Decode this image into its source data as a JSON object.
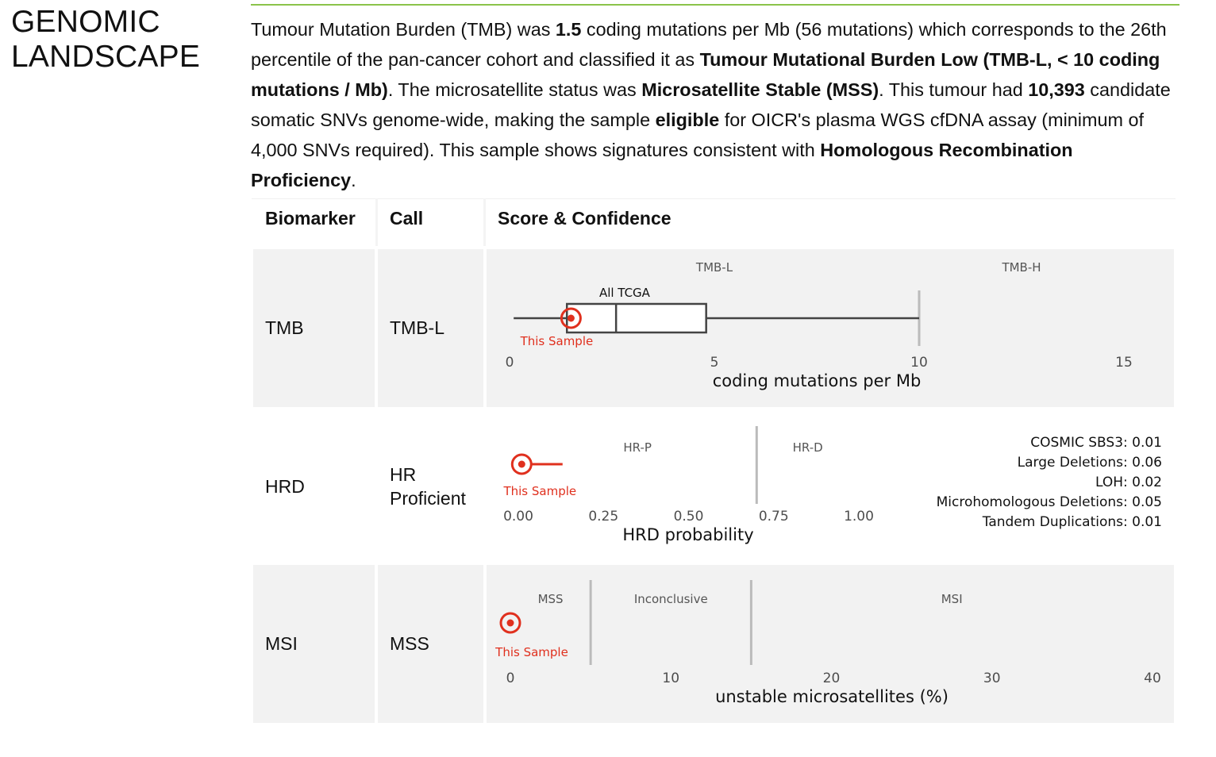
{
  "section": {
    "title_line1": "GENOMIC",
    "title_line2": "LANDSCAPE"
  },
  "summary": {
    "s1": "Tumour Mutation Burden (TMB) was ",
    "b1": "1.5",
    "s2": " coding mutations per Mb (56 mutations) which corresponds to the 26th percentile of the pan-cancer cohort and classified it as ",
    "b2": "Tumour Mutational Burden Low (TMB-L, < 10 coding mutations / Mb)",
    "s3": ". The microsatellite status was ",
    "b3": "Microsatellite Stable (MSS)",
    "s4": ". This tumour had ",
    "b4": "10,393",
    "s5": " candidate somatic SNVs genome-wide, making the sample ",
    "b5": "eligible",
    "s6": " for OICR's plasma WGS cfDNA assay (minimum of 4,000 SNVs required). This sample shows signatures consistent with ",
    "b6": "Homologous Recombination Proficiency",
    "s7": "."
  },
  "table": {
    "headers": {
      "biomarker": "Biomarker",
      "call": "Call",
      "score": "Score & Confidence"
    },
    "rows": [
      {
        "biomarker": "TMB",
        "call": "TMB-L"
      },
      {
        "biomarker": "HRD",
        "call_line1": "HR",
        "call_line2": "Proficient"
      },
      {
        "biomarker": "MSI",
        "call": "MSS"
      }
    ]
  },
  "colors": {
    "sample": "#e0301e",
    "panel_bg": "#f2f2f2",
    "rule": "#8bc34a",
    "box": "#444444",
    "threshold": "#bbbbbb"
  },
  "chart_data": [
    {
      "type": "box",
      "xlabel": "coding mutations per Mb",
      "xlim": [
        0,
        15
      ],
      "xticks": [
        "0",
        "5",
        "10",
        "15"
      ],
      "regions": [
        {
          "label": "TMB-L",
          "from": 0,
          "to": 10
        },
        {
          "label": "TMB-H",
          "from": 10,
          "to": 15
        }
      ],
      "threshold": 10,
      "cohort": {
        "label": "All TCGA",
        "whisker_low": 0.1,
        "q1": 1.4,
        "median": 2.6,
        "q3": 4.8,
        "whisker_high": 10.0
      },
      "sample": {
        "label": "This Sample",
        "value": 1.5
      }
    },
    {
      "type": "scatter",
      "xlabel": "HRD probability",
      "xlim": [
        0,
        1
      ],
      "xticks": [
        "0.00",
        "0.25",
        "0.50",
        "0.75",
        "1.00"
      ],
      "regions": [
        {
          "label": "HR-P",
          "from": 0,
          "to": 0.7
        },
        {
          "label": "HR-D",
          "from": 0.7,
          "to": 1
        }
      ],
      "threshold": 0.7,
      "sample": {
        "label": "This Sample",
        "value": 0.01,
        "ci_high": 0.13
      },
      "annotations": [
        "COSMIC SBS3: 0.01",
        "Large Deletions: 0.06",
        "LOH: 0.02",
        "Microhomologous Deletions: 0.05",
        "Tandem Duplications: 0.01"
      ]
    },
    {
      "type": "scatter",
      "xlabel": "unstable microsatellites (%)",
      "xlim": [
        0,
        40
      ],
      "xticks": [
        "0",
        "10",
        "20",
        "30",
        "40"
      ],
      "regions": [
        {
          "label": "MSS",
          "from": 0,
          "to": 5
        },
        {
          "label": "Inconclusive",
          "from": 5,
          "to": 15
        },
        {
          "label": "MSI",
          "from": 15,
          "to": 40
        }
      ],
      "thresholds": [
        5,
        15
      ],
      "sample": {
        "label": "This Sample",
        "value": 0
      }
    }
  ]
}
